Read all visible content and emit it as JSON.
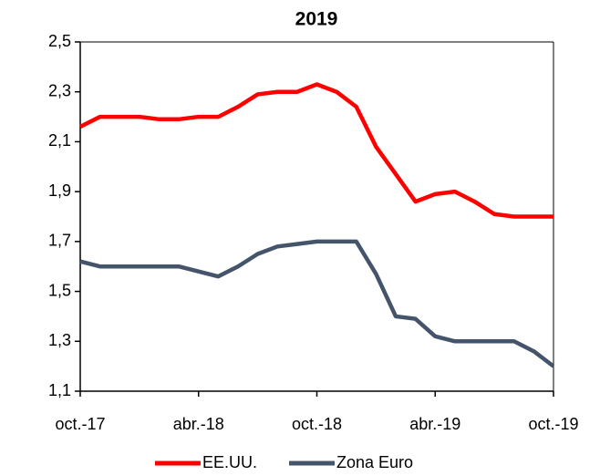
{
  "chart_data": {
    "type": "line",
    "title": "2019",
    "categories": [
      "oct.-17",
      null,
      null,
      null,
      null,
      null,
      "abr.-18",
      null,
      null,
      null,
      null,
      null,
      "oct.-18",
      null,
      null,
      null,
      null,
      null,
      "abr.-19",
      null,
      null,
      null,
      null,
      null,
      "oct.-19"
    ],
    "series": [
      {
        "name": "EE.UU.",
        "color": "#ff0000",
        "values": [
          2.16,
          2.2,
          2.2,
          2.2,
          2.19,
          2.19,
          2.2,
          2.2,
          2.24,
          2.29,
          2.3,
          2.3,
          2.33,
          2.3,
          2.24,
          2.08,
          1.97,
          1.86,
          1.89,
          1.9,
          1.86,
          1.81,
          1.8,
          1.8,
          1.8
        ]
      },
      {
        "name": "Zona Euro",
        "color": "#44546a",
        "values": [
          1.62,
          1.6,
          1.6,
          1.6,
          1.6,
          1.6,
          1.58,
          1.56,
          1.6,
          1.65,
          1.68,
          1.69,
          1.7,
          1.7,
          1.7,
          1.57,
          1.4,
          1.39,
          1.32,
          1.3,
          1.3,
          1.3,
          1.3,
          1.26,
          1.2
        ]
      }
    ],
    "ylim": [
      1.1,
      2.5
    ],
    "yticks": [
      {
        "value": 1.1,
        "label": "1,1"
      },
      {
        "value": 1.3,
        "label": "1,3"
      },
      {
        "value": 1.5,
        "label": "1,5"
      },
      {
        "value": 1.7,
        "label": "1,7"
      },
      {
        "value": 1.9,
        "label": "1,9"
      },
      {
        "value": 2.1,
        "label": "2,1"
      },
      {
        "value": 2.3,
        "label": "2,3"
      },
      {
        "value": 2.5,
        "label": "2,5"
      }
    ],
    "legend": "bottom"
  }
}
